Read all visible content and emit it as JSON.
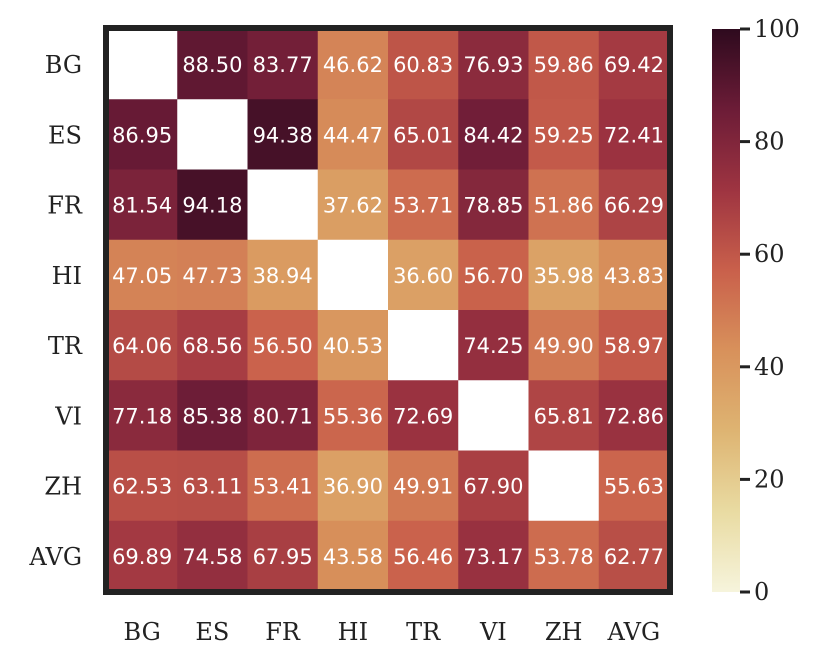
{
  "chart_data": {
    "type": "heatmap",
    "rows": [
      "BG",
      "ES",
      "FR",
      "HI",
      "TR",
      "VI",
      "ZH",
      "AVG"
    ],
    "columns": [
      "BG",
      "ES",
      "FR",
      "HI",
      "TR",
      "VI",
      "ZH",
      "AVG"
    ],
    "values": [
      [
        null,
        88.5,
        83.77,
        46.62,
        60.83,
        76.93,
        59.86,
        69.42
      ],
      [
        86.95,
        null,
        94.38,
        44.47,
        65.01,
        84.42,
        59.25,
        72.41
      ],
      [
        81.54,
        94.18,
        null,
        37.62,
        53.71,
        78.85,
        51.86,
        66.29
      ],
      [
        47.05,
        47.73,
        38.94,
        null,
        36.6,
        56.7,
        35.98,
        43.83
      ],
      [
        64.06,
        68.56,
        56.5,
        40.53,
        null,
        74.25,
        49.9,
        58.97
      ],
      [
        77.18,
        85.38,
        80.71,
        55.36,
        72.69,
        null,
        65.81,
        72.86
      ],
      [
        62.53,
        63.11,
        53.41,
        36.9,
        49.91,
        67.9,
        null,
        55.63
      ],
      [
        69.89,
        74.58,
        67.95,
        43.58,
        56.46,
        73.17,
        53.78,
        62.77
      ]
    ],
    "colorbar": {
      "range": [
        0,
        100
      ],
      "ticks": [
        "0",
        "20",
        "40",
        "60",
        "80",
        "100"
      ]
    },
    "colormap_stops": [
      "#f6f4dc",
      "#e9dba2",
      "#deb472",
      "#d8915b",
      "#c9604b",
      "#9e3441",
      "#6c1c37",
      "#2e0a1e"
    ]
  }
}
